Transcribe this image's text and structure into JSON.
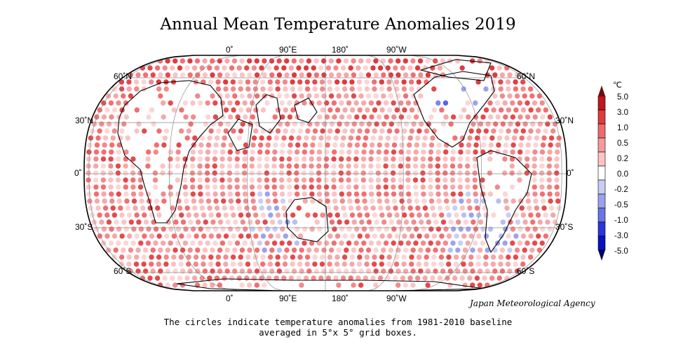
{
  "title": "Annual Mean Temperature Anomalies 2019",
  "credit": "Japan Meteorological Agency",
  "caption": {
    "line1": "The circles indicate temperature anomalies from 1981-2010 baseline",
    "line2": "averaged in 5°x 5° grid boxes."
  },
  "map": {
    "projection": "Robinson-like, centered on 150°E",
    "longitude_labels": [
      "0˚",
      "90˚E",
      "180˚",
      "90˚W"
    ],
    "latitude_labels_left": [
      "60˚N",
      "30˚N",
      "0˚",
      "30˚S",
      "60˚S"
    ],
    "latitude_labels_right": [
      "60˚N",
      "30˚N",
      "0˚",
      "30˚S",
      "60˚S"
    ]
  },
  "colorbar": {
    "unit": "℃",
    "labels": [
      "5.0",
      "3.0",
      "1.0",
      "0.5",
      "0.2",
      "0.0",
      "-0.2",
      "-0.5",
      "-1.0",
      "-3.0",
      "-5.0"
    ],
    "colors": [
      "#c0161c",
      "#e03a3c",
      "#f0696b",
      "#f79a9c",
      "#fbc4c5",
      "#ffffff",
      "#c8cdf7",
      "#9aa2ef",
      "#6a74e6",
      "#2a36d8",
      "#0712c0"
    ],
    "top_arrow_color": "#6b0d0d",
    "bottom_arrow_color": "#000060"
  }
}
